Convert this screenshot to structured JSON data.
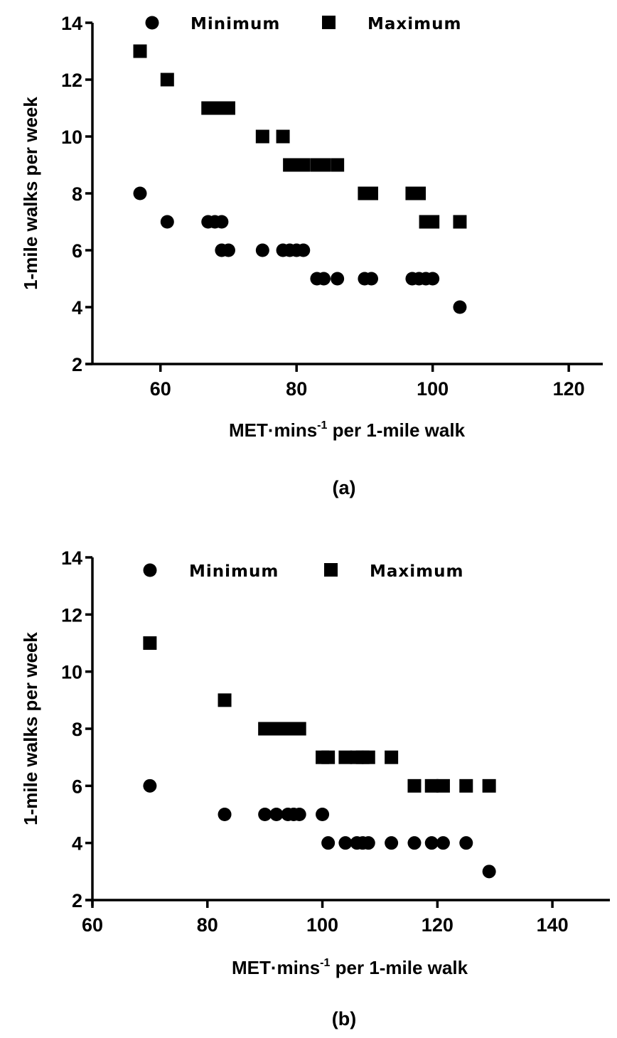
{
  "chart_data": [
    {
      "type": "scatter",
      "caption": "(a)",
      "title": "",
      "xlabel_main": "MET·mins",
      "xlabel_sup": "-1",
      "xlabel_rest": " per 1-mile walk",
      "ylabel": "1-mile walks per week",
      "xlim": [
        50,
        125
      ],
      "ylim": [
        2,
        14
      ],
      "xticks": [
        60,
        80,
        100,
        120
      ],
      "yticks": [
        2,
        4,
        6,
        8,
        10,
        12,
        14
      ],
      "grid": false,
      "legend_position": "top",
      "series": [
        {
          "name": "Minimum",
          "marker": "circle",
          "color": "#000000",
          "points": [
            [
              57,
              8
            ],
            [
              61,
              7
            ],
            [
              67,
              7
            ],
            [
              68,
              7
            ],
            [
              69,
              7
            ],
            [
              69,
              6
            ],
            [
              70,
              6
            ],
            [
              75,
              6
            ],
            [
              78,
              6
            ],
            [
              79,
              6
            ],
            [
              80,
              6
            ],
            [
              81,
              6
            ],
            [
              83,
              5
            ],
            [
              84,
              5
            ],
            [
              86,
              5
            ],
            [
              90,
              5
            ],
            [
              91,
              5
            ],
            [
              97,
              5
            ],
            [
              98,
              5
            ],
            [
              99,
              5
            ],
            [
              100,
              5
            ],
            [
              104,
              4
            ]
          ]
        },
        {
          "name": "Maximum",
          "marker": "square",
          "color": "#000000",
          "points": [
            [
              57,
              13
            ],
            [
              61,
              12
            ],
            [
              67,
              11
            ],
            [
              68,
              11
            ],
            [
              69,
              11
            ],
            [
              69,
              11
            ],
            [
              70,
              11
            ],
            [
              75,
              10
            ],
            [
              78,
              10
            ],
            [
              79,
              9
            ],
            [
              80,
              9
            ],
            [
              81,
              9
            ],
            [
              83,
              9
            ],
            [
              84,
              9
            ],
            [
              86,
              9
            ],
            [
              90,
              8
            ],
            [
              91,
              8
            ],
            [
              97,
              8
            ],
            [
              98,
              8
            ],
            [
              99,
              7
            ],
            [
              100,
              7
            ],
            [
              104,
              7
            ]
          ]
        }
      ]
    },
    {
      "type": "scatter",
      "caption": "(b)",
      "title": "",
      "xlabel_main": "MET·mins",
      "xlabel_sup": "-1",
      "xlabel_rest": " per 1-mile walk",
      "ylabel": "1-mile walks per week",
      "xlim": [
        60,
        150
      ],
      "ylim": [
        2,
        14
      ],
      "xticks": [
        60,
        80,
        100,
        120,
        140
      ],
      "yticks": [
        2,
        4,
        6,
        8,
        10,
        12,
        14
      ],
      "grid": false,
      "legend_position": "top",
      "series": [
        {
          "name": "Minimum",
          "marker": "circle",
          "color": "#000000",
          "points": [
            [
              70,
              6
            ],
            [
              83,
              5
            ],
            [
              90,
              5
            ],
            [
              92,
              5
            ],
            [
              94,
              5
            ],
            [
              95,
              5
            ],
            [
              96,
              5
            ],
            [
              100,
              5
            ],
            [
              101,
              4
            ],
            [
              104,
              4
            ],
            [
              106,
              4
            ],
            [
              107,
              4
            ],
            [
              108,
              4
            ],
            [
              112,
              4
            ],
            [
              116,
              4
            ],
            [
              119,
              4
            ],
            [
              121,
              4
            ],
            [
              125,
              4
            ],
            [
              129,
              3
            ]
          ]
        },
        {
          "name": "Maximum",
          "marker": "square",
          "color": "#000000",
          "points": [
            [
              70,
              11
            ],
            [
              83,
              9
            ],
            [
              90,
              8
            ],
            [
              92,
              8
            ],
            [
              94,
              8
            ],
            [
              95,
              8
            ],
            [
              96,
              8
            ],
            [
              100,
              7
            ],
            [
              101,
              7
            ],
            [
              104,
              7
            ],
            [
              106,
              7
            ],
            [
              107,
              7
            ],
            [
              108,
              7
            ],
            [
              112,
              7
            ],
            [
              116,
              6
            ],
            [
              119,
              6
            ],
            [
              121,
              6
            ],
            [
              125,
              6
            ],
            [
              129,
              6
            ]
          ]
        }
      ]
    }
  ]
}
